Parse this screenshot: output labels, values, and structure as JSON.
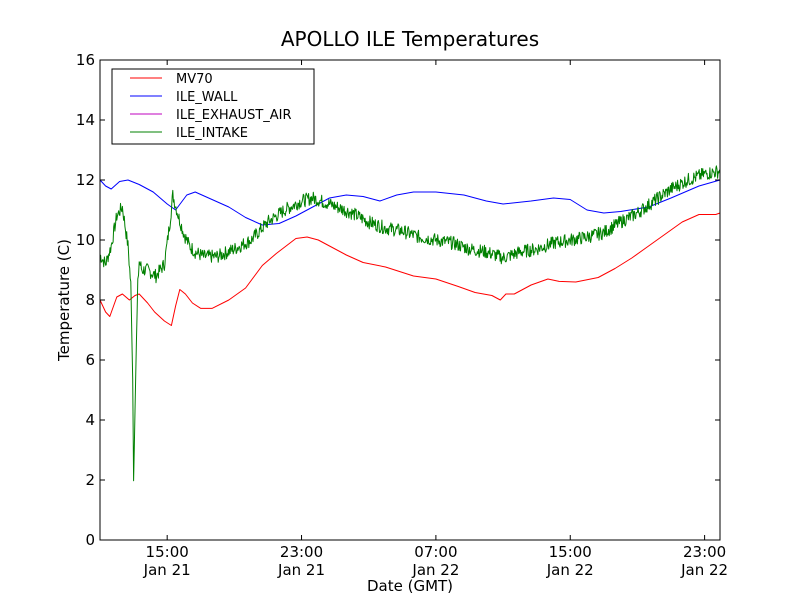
{
  "chart_data": {
    "type": "line",
    "title": "APOLLO ILE Temperatures",
    "xlabel": "Date (GMT)",
    "ylabel": "Temperature (C)",
    "ylim": [
      0,
      16
    ],
    "xlim": [
      "2021-01-21 11:00",
      "2021-01-22 23:55"
    ],
    "yticks": [
      0,
      2,
      4,
      6,
      8,
      10,
      12,
      14,
      16
    ],
    "xticks": [
      {
        "time": "2021-01-21 15:00",
        "label1": "15:00",
        "label2": "Jan 21"
      },
      {
        "time": "2021-01-21 23:00",
        "label1": "23:00",
        "label2": "Jan 21"
      },
      {
        "time": "2021-01-22 07:00",
        "label1": "07:00",
        "label2": "Jan 22"
      },
      {
        "time": "2021-01-22 15:00",
        "label1": "15:00",
        "label2": "Jan 22"
      },
      {
        "time": "2021-01-22 23:00",
        "label1": "23:00",
        "label2": "Jan 22"
      }
    ],
    "grid": false,
    "legend": "top-left",
    "series": [
      {
        "name": "MV70",
        "color": "#ff0000",
        "x": [
          "2021-01-21 11:00",
          "2021-01-21 11:20",
          "2021-01-21 11:35",
          "2021-01-21 12:00",
          "2021-01-21 12:20",
          "2021-01-21 12:45",
          "2021-01-21 13:05",
          "2021-01-21 13:20",
          "2021-01-21 13:50",
          "2021-01-21 14:15",
          "2021-01-21 14:50",
          "2021-01-21 15:15",
          "2021-01-21 15:30",
          "2021-01-21 15:45",
          "2021-01-21 16:05",
          "2021-01-21 16:30",
          "2021-01-21 17:00",
          "2021-01-21 17:40",
          "2021-01-21 18:40",
          "2021-01-21 19:40",
          "2021-01-21 20:40",
          "2021-01-21 21:30",
          "2021-01-21 22:40",
          "2021-01-21 23:20",
          "2021-01-22 00:00",
          "2021-01-22 00:40",
          "2021-01-22 01:40",
          "2021-01-22 02:40",
          "2021-01-22 04:00",
          "2021-01-22 05:40",
          "2021-01-22 07:00",
          "2021-01-22 08:20",
          "2021-01-22 09:20",
          "2021-01-22 10:20",
          "2021-01-22 10:50",
          "2021-01-22 11:10",
          "2021-01-22 11:40",
          "2021-01-22 12:40",
          "2021-01-22 13:40",
          "2021-01-22 14:20",
          "2021-01-22 15:20",
          "2021-01-22 16:40",
          "2021-01-22 17:40",
          "2021-01-22 18:40",
          "2021-01-22 19:40",
          "2021-01-22 20:40",
          "2021-01-22 21:40",
          "2021-01-22 22:40",
          "2021-01-22 23:10",
          "2021-01-22 23:40",
          "2021-01-22 23:55"
        ],
        "values": [
          8.0,
          7.6,
          7.45,
          8.1,
          8.2,
          8.0,
          8.15,
          8.2,
          7.9,
          7.6,
          7.3,
          7.15,
          7.8,
          8.35,
          8.2,
          7.9,
          7.72,
          7.72,
          8.0,
          8.4,
          9.15,
          9.55,
          10.05,
          10.1,
          10.0,
          9.8,
          9.5,
          9.25,
          9.1,
          8.8,
          8.7,
          8.45,
          8.25,
          8.15,
          8.0,
          8.2,
          8.2,
          8.5,
          8.7,
          8.62,
          8.6,
          8.75,
          9.05,
          9.4,
          9.8,
          10.2,
          10.6,
          10.85,
          10.85,
          10.85,
          10.9
        ]
      },
      {
        "name": "ILE_WALL",
        "color": "#0000ff",
        "x": [
          "2021-01-21 11:00",
          "2021-01-21 11:20",
          "2021-01-21 11:40",
          "2021-01-21 12:10",
          "2021-01-21 12:40",
          "2021-01-21 13:20",
          "2021-01-21 14:10",
          "2021-01-21 15:00",
          "2021-01-21 15:30",
          "2021-01-21 16:10",
          "2021-01-21 16:40",
          "2021-01-21 17:40",
          "2021-01-21 18:40",
          "2021-01-21 19:40",
          "2021-01-21 20:40",
          "2021-01-21 21:40",
          "2021-01-21 22:40",
          "2021-01-21 23:40",
          "2021-01-22 00:40",
          "2021-01-22 01:40",
          "2021-01-22 02:40",
          "2021-01-22 03:40",
          "2021-01-22 04:40",
          "2021-01-22 05:40",
          "2021-01-22 07:00",
          "2021-01-22 08:40",
          "2021-01-22 10:00",
          "2021-01-22 11:00",
          "2021-01-22 12:40",
          "2021-01-22 14:00",
          "2021-01-22 15:00",
          "2021-01-22 16:00",
          "2021-01-22 17:00",
          "2021-01-22 18:00",
          "2021-01-22 19:40",
          "2021-01-22 21:00",
          "2021-01-22 22:40",
          "2021-01-22 23:55"
        ],
        "values": [
          12.0,
          11.8,
          11.7,
          11.95,
          12.0,
          11.85,
          11.6,
          11.2,
          11.0,
          11.5,
          11.6,
          11.35,
          11.1,
          10.75,
          10.5,
          10.55,
          10.8,
          11.1,
          11.4,
          11.5,
          11.45,
          11.3,
          11.5,
          11.6,
          11.6,
          11.5,
          11.3,
          11.2,
          11.3,
          11.4,
          11.35,
          11.0,
          10.9,
          10.95,
          11.1,
          11.4,
          11.8,
          12.0
        ]
      },
      {
        "name": "ILE_EXHAUST_AIR",
        "color": "#bf00bf",
        "x": [],
        "values": []
      },
      {
        "name": "ILE_INTAKE",
        "color": "#008000",
        "x": [
          "2021-01-21 11:00",
          "2021-01-21 11:20",
          "2021-01-21 11:40",
          "2021-01-21 12:00",
          "2021-01-21 12:20",
          "2021-01-21 12:40",
          "2021-01-21 12:50",
          "2021-01-21 12:57",
          "2021-01-21 13:00",
          "2021-01-21 13:05",
          "2021-01-21 13:10",
          "2021-01-21 13:15",
          "2021-01-21 13:20",
          "2021-01-21 13:30",
          "2021-01-21 13:50",
          "2021-01-21 14:20",
          "2021-01-21 14:50",
          "2021-01-21 15:10",
          "2021-01-21 15:20",
          "2021-01-21 15:40",
          "2021-01-21 16:00",
          "2021-01-21 16:20",
          "2021-01-21 16:40",
          "2021-01-21 17:10",
          "2021-01-21 18:00",
          "2021-01-21 19:00",
          "2021-01-21 20:00",
          "2021-01-21 21:00",
          "2021-01-21 22:00",
          "2021-01-21 23:00",
          "2021-01-21 23:40",
          "2021-01-22 00:40",
          "2021-01-22 02:00",
          "2021-01-22 03:00",
          "2021-01-22 04:00",
          "2021-01-22 05:00",
          "2021-01-22 06:00",
          "2021-01-22 07:00",
          "2021-01-22 08:00",
          "2021-01-22 09:00",
          "2021-01-22 10:00",
          "2021-01-22 11:00",
          "2021-01-22 12:00",
          "2021-01-22 13:00",
          "2021-01-22 14:00",
          "2021-01-22 15:00",
          "2021-01-22 16:00",
          "2021-01-22 17:00",
          "2021-01-22 18:00",
          "2021-01-22 19:00",
          "2021-01-22 20:00",
          "2021-01-22 21:00",
          "2021-01-22 22:00",
          "2021-01-22 23:00",
          "2021-01-22 23:55"
        ],
        "values": [
          9.5,
          9.2,
          9.8,
          10.8,
          11.1,
          9.8,
          8.5,
          5.5,
          2.0,
          4.5,
          6.5,
          8.5,
          9.3,
          9.0,
          9.0,
          8.8,
          9.2,
          10.6,
          11.5,
          10.8,
          10.2,
          9.8,
          9.6,
          9.45,
          9.45,
          9.7,
          10.0,
          10.6,
          11.0,
          11.3,
          11.4,
          11.2,
          10.9,
          10.6,
          10.4,
          10.3,
          10.1,
          10.0,
          9.9,
          9.7,
          9.6,
          9.4,
          9.6,
          9.7,
          9.9,
          10.0,
          10.1,
          10.25,
          10.6,
          10.9,
          11.3,
          11.7,
          12.0,
          12.2,
          12.3
        ]
      }
    ]
  }
}
